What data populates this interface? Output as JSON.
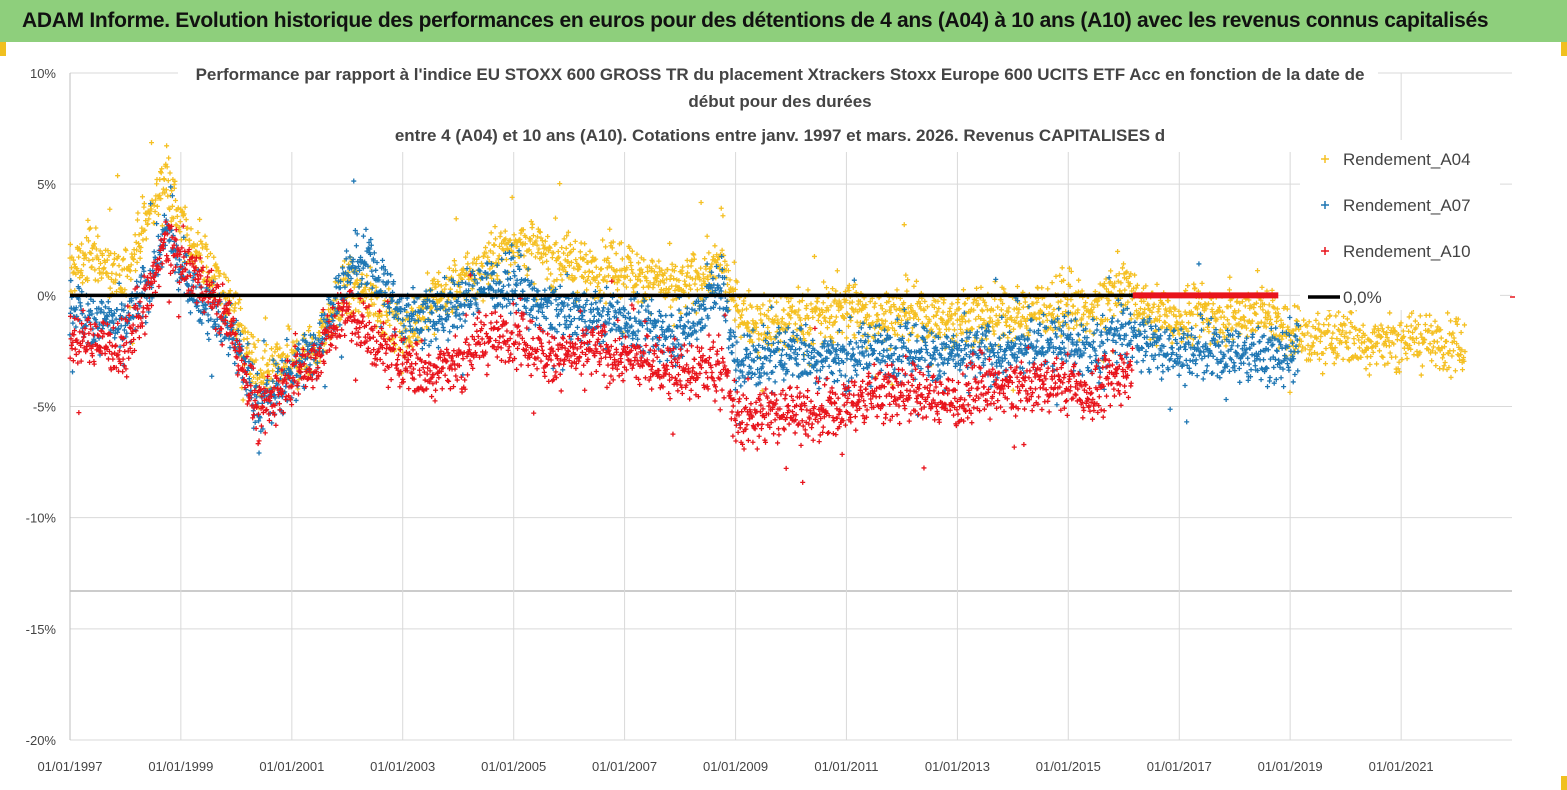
{
  "banner": {
    "text": "ADAM Informe. Evolution historique des performances en euros pour des détentions de 4 ans (A04) à 10 ans (A10) avec les revenus connus capitalisés"
  },
  "colors": {
    "banner_bg": "#8ecf7c",
    "A04": "#f5c023",
    "A07": "#1f77b4",
    "A10": "#e8141c",
    "zero_line": "#000000",
    "grid": "#d9d9d9"
  },
  "chart_data": {
    "type": "scatter",
    "title_lines": [
      "Performance par rapport à l'indice EU STOXX 600 GROSS TR  du placement Xtrackers Stoxx Europe 600 UCITS ETF Acc en fonction de la date de",
      "début pour des durées",
      "entre 4 (A04) et 10 ans (A10). Cotations entre janv. 1997 et mars. 2026. Revenus CAPITALISES d"
    ],
    "xlabel": "",
    "ylabel": "",
    "x_ticks": [
      "01/01/1997",
      "01/01/1999",
      "01/01/2001",
      "01/01/2003",
      "01/01/2005",
      "01/01/2007",
      "01/01/2009",
      "01/01/2011",
      "01/01/2013",
      "01/01/2015",
      "01/01/2017",
      "01/01/2019",
      "01/01/2021"
    ],
    "y_ticks": [
      "10%",
      "5%",
      "0%",
      "-5%",
      "-10%",
      "-15%",
      "-20%"
    ],
    "xlim": [
      "1997-01-01",
      "2023-01-01"
    ],
    "ylim": [
      -20,
      10
    ],
    "grid": true,
    "legend_position": "right",
    "series": [
      {
        "name": "Rendement_A04",
        "marker": "+",
        "end": "2022-03-15",
        "points": [
          [
            "1997-01",
            1.0
          ],
          [
            "1997-06",
            2.0
          ],
          [
            "1997-12",
            0.5
          ],
          [
            "1998-06",
            3.5
          ],
          [
            "1998-10",
            5.5
          ],
          [
            "1999-01",
            3.0
          ],
          [
            "1999-06",
            1.5
          ],
          [
            "1999-12",
            -0.5
          ],
          [
            "2000-06",
            -4.0
          ],
          [
            "2001-01",
            -3.0
          ],
          [
            "2001-06",
            -2.5
          ],
          [
            "2002-01",
            0.5
          ],
          [
            "2002-06",
            0.0
          ],
          [
            "2003-01",
            -2.0
          ],
          [
            "2003-06",
            -0.5
          ],
          [
            "2004-01",
            0.5
          ],
          [
            "2004-06",
            1.0
          ],
          [
            "2005-01",
            2.5
          ],
          [
            "2005-06",
            2.0
          ],
          [
            "2006-01",
            1.5
          ],
          [
            "2006-06",
            1.0
          ],
          [
            "2007-01",
            1.2
          ],
          [
            "2007-06",
            0.8
          ],
          [
            "2008-01",
            0.2
          ],
          [
            "2008-10",
            1.5
          ],
          [
            "2009-01",
            -0.5
          ],
          [
            "2009-06",
            -1.5
          ],
          [
            "2010-01",
            -1.0
          ],
          [
            "2010-06",
            -1.0
          ],
          [
            "2011-01",
            -0.5
          ],
          [
            "2011-06",
            -1.0
          ],
          [
            "2012-01",
            -0.8
          ],
          [
            "2012-06",
            -1.0
          ],
          [
            "2013-01",
            -1.2
          ],
          [
            "2013-06",
            -0.8
          ],
          [
            "2014-01",
            -1.0
          ],
          [
            "2014-06",
            -0.6
          ],
          [
            "2015-01",
            -0.5
          ],
          [
            "2015-06",
            -0.8
          ],
          [
            "2016-01",
            0.5
          ],
          [
            "2016-06",
            -0.8
          ],
          [
            "2017-01",
            -1.0
          ],
          [
            "2017-06",
            -0.8
          ],
          [
            "2018-01",
            -0.9
          ],
          [
            "2018-06",
            -0.6
          ],
          [
            "2019-01",
            -1.6
          ],
          [
            "2019-06",
            -2.0
          ],
          [
            "2020-01",
            -1.8
          ],
          [
            "2020-06",
            -2.2
          ],
          [
            "2021-01",
            -1.9
          ],
          [
            "2021-06",
            -2.0
          ],
          [
            "2022-01",
            -2.3
          ],
          [
            "2022-03",
            -2.5
          ]
        ]
      },
      {
        "name": "Rendement_A07",
        "marker": "+",
        "end": "2019-03-01",
        "points": [
          [
            "1997-01",
            -0.5
          ],
          [
            "1997-06",
            -1.0
          ],
          [
            "1998-01",
            -1.5
          ],
          [
            "1998-06",
            0.5
          ],
          [
            "1998-10",
            3.0
          ],
          [
            "1999-01",
            1.0
          ],
          [
            "1999-06",
            -0.5
          ],
          [
            "1999-12",
            -1.5
          ],
          [
            "2000-06",
            -5.0
          ],
          [
            "2001-01",
            -3.5
          ],
          [
            "2001-06",
            -2.5
          ],
          [
            "2002-01",
            1.0
          ],
          [
            "2002-06",
            1.5
          ],
          [
            "2003-01",
            -1.0
          ],
          [
            "2003-06",
            -1.0
          ],
          [
            "2004-01",
            -0.5
          ],
          [
            "2004-06",
            0.5
          ],
          [
            "2005-01",
            0.5
          ],
          [
            "2005-06",
            -0.5
          ],
          [
            "2006-01",
            -0.8
          ],
          [
            "2006-06",
            -1.0
          ],
          [
            "2007-01",
            -1.0
          ],
          [
            "2007-06",
            -1.5
          ],
          [
            "2008-01",
            -1.8
          ],
          [
            "2008-10",
            0.5
          ],
          [
            "2009-01",
            -3.0
          ],
          [
            "2009-06",
            -3.0
          ],
          [
            "2010-01",
            -2.5
          ],
          [
            "2010-06",
            -2.8
          ],
          [
            "2011-01",
            -2.8
          ],
          [
            "2011-06",
            -2.5
          ],
          [
            "2012-01",
            -2.5
          ],
          [
            "2012-06",
            -2.5
          ],
          [
            "2013-01",
            -2.8
          ],
          [
            "2013-06",
            -2.6
          ],
          [
            "2014-01",
            -2.6
          ],
          [
            "2014-06",
            -2.2
          ],
          [
            "2015-01",
            -2.0
          ],
          [
            "2015-06",
            -2.5
          ],
          [
            "2016-01",
            -1.5
          ],
          [
            "2016-06",
            -2.2
          ],
          [
            "2017-01",
            -2.5
          ],
          [
            "2017-06",
            -2.6
          ],
          [
            "2018-01",
            -2.6
          ],
          [
            "2018-06",
            -2.8
          ],
          [
            "2019-01",
            -2.5
          ],
          [
            "2019-03",
            -2.6
          ]
        ]
      },
      {
        "name": "Rendement_A10",
        "marker": "+",
        "end": "2016-03-01",
        "points": [
          [
            "1997-01",
            -2.0
          ],
          [
            "1997-06",
            -2.0
          ],
          [
            "1998-01",
            -2.5
          ],
          [
            "1998-06",
            0.0
          ],
          [
            "1998-10",
            2.5
          ],
          [
            "1999-01",
            1.5
          ],
          [
            "1999-06",
            0.5
          ],
          [
            "1999-12",
            -1.5
          ],
          [
            "2000-06",
            -5.5
          ],
          [
            "2001-01",
            -3.5
          ],
          [
            "2001-06",
            -3.0
          ],
          [
            "2002-01",
            -0.5
          ],
          [
            "2002-06",
            -2.0
          ],
          [
            "2003-01",
            -3.0
          ],
          [
            "2003-06",
            -3.5
          ],
          [
            "2004-01",
            -3.0
          ],
          [
            "2004-06",
            -2.0
          ],
          [
            "2005-01",
            -1.8
          ],
          [
            "2005-06",
            -2.5
          ],
          [
            "2006-01",
            -2.8
          ],
          [
            "2006-06",
            -2.5
          ],
          [
            "2007-01",
            -2.8
          ],
          [
            "2007-06",
            -3.0
          ],
          [
            "2008-01",
            -3.5
          ],
          [
            "2008-10",
            -3.0
          ],
          [
            "2009-01",
            -5.5
          ],
          [
            "2009-06",
            -5.5
          ],
          [
            "2010-01",
            -5.0
          ],
          [
            "2010-06",
            -5.5
          ],
          [
            "2011-01",
            -5.0
          ],
          [
            "2011-06",
            -4.5
          ],
          [
            "2012-01",
            -4.2
          ],
          [
            "2012-06",
            -4.5
          ],
          [
            "2013-01",
            -4.8
          ],
          [
            "2013-06",
            -4.2
          ],
          [
            "2014-01",
            -4.2
          ],
          [
            "2014-06",
            -4.0
          ],
          [
            "2015-01",
            -4.0
          ],
          [
            "2015-06",
            -4.5
          ],
          [
            "2016-01",
            -3.5
          ],
          [
            "2016-03",
            -3.2
          ]
        ]
      },
      {
        "name": "0,0%",
        "type": "line",
        "points": [
          [
            "1997-01-01",
            0
          ],
          [
            "2016-03-01",
            0
          ]
        ]
      }
    ],
    "annotations": [
      {
        "text": "highlighted zero band",
        "from": "2016-03-01",
        "to": "2018-10-15",
        "y": 0,
        "color": "#e8141c"
      }
    ]
  }
}
